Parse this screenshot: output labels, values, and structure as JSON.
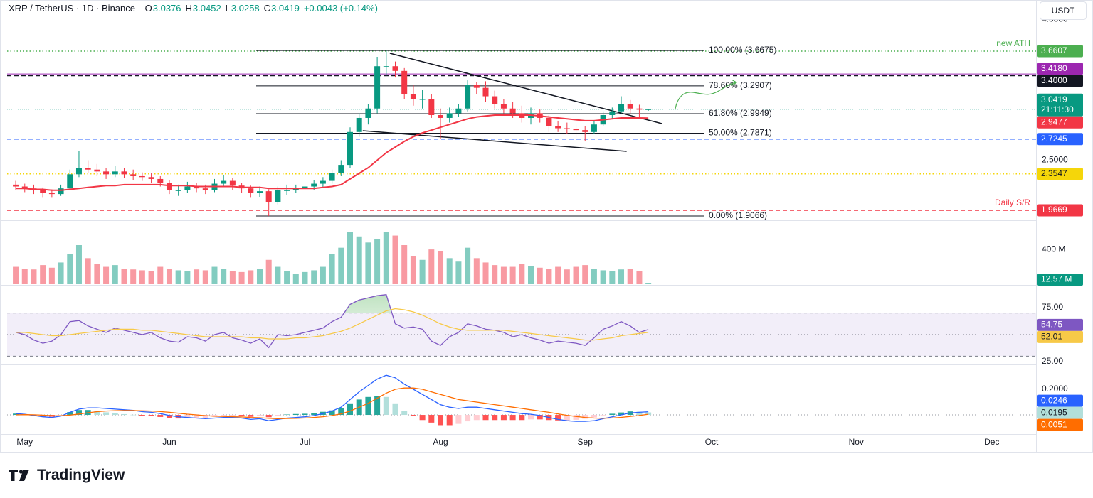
{
  "header": {
    "symbol": "XRP / TetherUS · 1D · Binance",
    "ohlc": [
      {
        "label": "O",
        "value": 3.0376
      },
      {
        "label": "H",
        "value": 3.0452
      },
      {
        "label": "L",
        "value": 3.0258
      },
      {
        "label": "C",
        "value": 3.0419
      }
    ],
    "change": "+0.0043 (+0.14%)",
    "currency": "USDT"
  },
  "chart_data": [
    {
      "type": "candlestick",
      "xlim": [
        -0.95,
        112.9
      ],
      "xticks": [
        {
          "value": 1,
          "label": "May"
        },
        {
          "value": 17,
          "label": "Jun"
        },
        {
          "value": 32,
          "label": "Jul"
        },
        {
          "value": 47,
          "label": "Aug"
        },
        {
          "value": 63,
          "label": "Sep"
        },
        {
          "value": 77,
          "label": "Oct"
        },
        {
          "value": 93,
          "label": "Nov"
        },
        {
          "value": 108,
          "label": "Dec"
        }
      ],
      "ylim": [
        1.861,
        4.167
      ],
      "yticks": [
        {
          "value": 2.5,
          "label": "2.5000"
        },
        {
          "value": 4,
          "label": "4.0000"
        }
      ],
      "up_color": "#089981",
      "down_color": "#f23645",
      "open": [
        2.24,
        2.22,
        2.2,
        2.18,
        2.15,
        2.14,
        2.2,
        2.35,
        2.42,
        2.4,
        2.38,
        2.35,
        2.38,
        2.35,
        2.33,
        2.32,
        2.3,
        2.26,
        2.18,
        2.18,
        2.22,
        2.2,
        2.18,
        2.25,
        2.28,
        2.23,
        2.2,
        2.15,
        2.17,
        2.05,
        2.18,
        2.18,
        2.2,
        2.22,
        2.25,
        2.28,
        2.36,
        2.45,
        2.8,
        2.95,
        3.05,
        3.5,
        3.5,
        3.45,
        3.2,
        3.15,
        3.15,
        2.98,
        2.95,
        3.0,
        3.05,
        3.3,
        3.27,
        3.18,
        3.1,
        3.05,
        3.0,
        2.95,
        3.0,
        2.95,
        2.86,
        2.84,
        2.83,
        2.82,
        2.8,
        2.88,
        2.98,
        3.02,
        3.1,
        3.05,
        3.0376
      ],
      "high": [
        2.28,
        2.25,
        2.24,
        2.21,
        2.19,
        2.24,
        2.4,
        2.6,
        2.5,
        2.46,
        2.42,
        2.44,
        2.42,
        2.4,
        2.37,
        2.36,
        2.33,
        2.29,
        2.24,
        2.27,
        2.26,
        2.24,
        2.3,
        2.34,
        2.31,
        2.26,
        2.23,
        2.22,
        2.19,
        2.22,
        2.24,
        2.24,
        2.26,
        2.29,
        2.32,
        2.4,
        2.5,
        2.85,
        3.0,
        3.1,
        3.6,
        3.6675,
        3.55,
        3.48,
        3.3,
        3.25,
        3.2,
        3.05,
        3.06,
        3.1,
        3.35,
        3.33,
        3.34,
        3.24,
        3.15,
        3.12,
        3.08,
        3.06,
        3.04,
        2.98,
        2.92,
        2.9,
        2.88,
        2.86,
        2.92,
        3.02,
        3.06,
        3.18,
        3.14,
        3.09,
        3.0452
      ],
      "low": [
        2.18,
        2.16,
        2.14,
        2.1,
        2.1,
        2.12,
        2.18,
        2.32,
        2.36,
        2.33,
        2.3,
        2.32,
        2.31,
        2.29,
        2.28,
        2.26,
        2.22,
        2.14,
        2.12,
        2.15,
        2.16,
        2.14,
        2.16,
        2.22,
        2.18,
        2.15,
        2.1,
        2.11,
        1.9066,
        2.03,
        2.13,
        2.15,
        2.16,
        2.18,
        2.21,
        2.25,
        2.33,
        2.42,
        2.75,
        2.88,
        3.0,
        3.4,
        3.38,
        3.15,
        3.08,
        3.05,
        2.95,
        2.73,
        2.9,
        2.96,
        3.02,
        3.2,
        3.12,
        3.05,
        3.0,
        2.95,
        2.9,
        2.88,
        2.9,
        2.8,
        2.8,
        2.78,
        2.74,
        2.7,
        2.78,
        2.86,
        2.94,
        3.0,
        3.0,
        2.95,
        3.0258
      ],
      "close": [
        2.22,
        2.2,
        2.18,
        2.15,
        2.14,
        2.2,
        2.35,
        2.42,
        2.4,
        2.38,
        2.35,
        2.38,
        2.35,
        2.33,
        2.32,
        2.3,
        2.26,
        2.18,
        2.18,
        2.22,
        2.2,
        2.18,
        2.25,
        2.28,
        2.23,
        2.2,
        2.15,
        2.17,
        2.05,
        2.18,
        2.18,
        2.2,
        2.22,
        2.25,
        2.28,
        2.36,
        2.45,
        2.8,
        2.95,
        3.05,
        3.5,
        3.5,
        3.45,
        3.2,
        3.15,
        3.15,
        2.98,
        2.95,
        3.0,
        3.05,
        3.3,
        3.27,
        3.18,
        3.1,
        3.05,
        3.0,
        2.95,
        3.0,
        2.95,
        2.86,
        2.84,
        2.83,
        2.82,
        2.8,
        2.88,
        2.98,
        3.02,
        3.1,
        3.05,
        3.0376,
        3.0419
      ],
      "countdown": "21:11:30",
      "ema": {
        "color": "#f23645",
        "values": [
          2.2,
          2.2,
          2.19,
          2.19,
          2.18,
          2.18,
          2.19,
          2.2,
          2.21,
          2.22,
          2.23,
          2.23,
          2.24,
          2.24,
          2.24,
          2.24,
          2.24,
          2.23,
          2.23,
          2.23,
          2.22,
          2.22,
          2.22,
          2.22,
          2.22,
          2.21,
          2.21,
          2.21,
          2.2,
          2.2,
          2.2,
          2.2,
          2.2,
          2.2,
          2.21,
          2.22,
          2.24,
          2.3,
          2.36,
          2.42,
          2.5,
          2.58,
          2.64,
          2.7,
          2.75,
          2.79,
          2.82,
          2.85,
          2.88,
          2.91,
          2.94,
          2.96,
          2.97,
          2.98,
          2.98,
          2.98,
          2.98,
          2.98,
          2.97,
          2.96,
          2.95,
          2.94,
          2.93,
          2.92,
          2.92,
          2.93,
          2.94,
          2.95,
          2.95,
          2.95,
          2.9477
        ]
      },
      "levels": [
        {
          "value": 3.6607,
          "tag": "3.6607",
          "name": "new ATH",
          "color": "#4caf50",
          "style": "dotted"
        },
        {
          "value": 3.418,
          "tag": "3.4180",
          "color": "#9c27b0",
          "style": "solid"
        },
        {
          "value": 3.4,
          "tag": "3.4000",
          "color": "#131722",
          "style": "dashed"
        },
        {
          "value": 2.7245,
          "tag": "2.7245",
          "color": "#2962ff",
          "style": "dashed"
        },
        {
          "value": 2.3547,
          "tag": "2.3547",
          "color": "#f5d60a",
          "text_color": "#131722",
          "style": "dotted"
        },
        {
          "value": 1.9669,
          "tag": "1.9669",
          "name": "Daily S/R",
          "color": "#f23645",
          "style": "dashed"
        }
      ],
      "fibonacci": [
        {
          "value": 3.6675,
          "label": "100.00% (3.6675)"
        },
        {
          "value": 3.2907,
          "label": "78.60% (3.2907)"
        },
        {
          "value": 2.9949,
          "label": "61.80% (2.9949)"
        },
        {
          "value": 2.7871,
          "label": "50.00% (2.7871)"
        },
        {
          "value": 1.9066,
          "label": "0.00% (1.9066)"
        }
      ],
      "trendlines": [
        {
          "x": [
            41.4,
            71.5
          ],
          "y": [
            3.638,
            2.889
          ]
        },
        {
          "x": [
            38.4,
            67.6
          ],
          "y": [
            2.814,
            2.594
          ]
        }
      ]
    },
    {
      "type": "volume",
      "ylim": [
        0,
        720
      ],
      "yticks": [
        {
          "value": 400,
          "label": "400 M"
        }
      ],
      "values": [
        200,
        180,
        170,
        220,
        190,
        250,
        350,
        450,
        300,
        230,
        200,
        220,
        180,
        170,
        160,
        150,
        200,
        180,
        160,
        150,
        170,
        160,
        200,
        180,
        150,
        140,
        160,
        180,
        280,
        200,
        150,
        120,
        140,
        160,
        200,
        350,
        420,
        600,
        550,
        480,
        520,
        600,
        560,
        450,
        320,
        280,
        400,
        380,
        300,
        260,
        420,
        300,
        250,
        220,
        200,
        200,
        230,
        210,
        190,
        180,
        200,
        170,
        200,
        220,
        180,
        160,
        150,
        170,
        180,
        150,
        12.57
      ],
      "last_value_label": "12.57 M"
    },
    {
      "type": "rsi",
      "ylim": [
        23,
        93.4
      ],
      "yticks": [
        {
          "value": 75,
          "label": "75.00"
        },
        {
          "value": 25,
          "label": "25.00"
        }
      ],
      "bands": {
        "upper": 70,
        "middle": 50,
        "lower": 30
      },
      "series": [
        {
          "color": "#7e57c2",
          "values": [
            52,
            50,
            45,
            42,
            44,
            50,
            62,
            63,
            58,
            55,
            52,
            56,
            54,
            52,
            50,
            52,
            47,
            44,
            43,
            48,
            47,
            44,
            50,
            52,
            47,
            45,
            42,
            46,
            38,
            50,
            49,
            50,
            52,
            54,
            56,
            62,
            66,
            78,
            82,
            84,
            86,
            87,
            60,
            56,
            57,
            55,
            44,
            40,
            48,
            52,
            60,
            58,
            55,
            54,
            52,
            48,
            50,
            47,
            45,
            42,
            44,
            43,
            42,
            40,
            47,
            55,
            58,
            62,
            58,
            52,
            54.75
          ]
        },
        {
          "color": "#f7c948",
          "values": [
            52,
            52,
            51,
            50,
            49,
            49,
            50,
            51,
            52,
            53,
            54,
            55,
            55,
            55,
            54,
            54,
            53,
            52,
            51,
            50,
            49,
            48,
            48,
            48,
            48,
            48,
            47,
            47,
            46,
            46,
            46,
            47,
            47,
            48,
            49,
            51,
            53,
            56,
            60,
            64,
            68,
            72,
            74,
            73,
            71,
            68,
            64,
            60,
            57,
            55,
            54,
            54,
            54,
            54,
            54,
            53,
            52,
            51,
            50,
            49,
            48,
            47,
            46,
            45,
            45,
            46,
            47,
            49,
            50,
            51,
            52.01
          ]
        }
      ]
    },
    {
      "type": "macd",
      "ylim": [
        -0.144,
        0.383
      ],
      "yticks": [
        {
          "value": 0.2,
          "label": "0.2000"
        }
      ],
      "baseline": 0,
      "series": [
        {
          "color": "#2962ff",
          "values": [
            0.01,
            0.005,
            -0.005,
            -0.015,
            -0.02,
            -0.01,
            0.02,
            0.045,
            0.055,
            0.055,
            0.05,
            0.045,
            0.04,
            0.035,
            0.025,
            0.02,
            0.01,
            -0.005,
            -0.015,
            -0.02,
            -0.025,
            -0.03,
            -0.025,
            -0.02,
            -0.02,
            -0.025,
            -0.035,
            -0.03,
            -0.045,
            -0.035,
            -0.025,
            -0.02,
            -0.015,
            -0.005,
            0.01,
            0.03,
            0.06,
            0.12,
            0.18,
            0.23,
            0.28,
            0.31,
            0.29,
            0.24,
            0.2,
            0.16,
            0.12,
            0.08,
            0.06,
            0.05,
            0.06,
            0.06,
            0.05,
            0.04,
            0.03,
            0.02,
            0.01,
            0.005,
            -0.005,
            -0.02,
            -0.035,
            -0.045,
            -0.05,
            -0.05,
            -0.045,
            -0.03,
            -0.015,
            0,
            0.015,
            0.02,
            0.0246
          ]
        },
        {
          "color": "#ff6d00",
          "values": [
            0,
            0.002,
            0.001,
            -0.002,
            -0.006,
            -0.007,
            -0.002,
            0.007,
            0.017,
            0.025,
            0.03,
            0.033,
            0.034,
            0.034,
            0.032,
            0.03,
            0.026,
            0.02,
            0.013,
            0.006,
            0,
            -0.006,
            -0.01,
            -0.012,
            -0.014,
            -0.016,
            -0.02,
            -0.022,
            -0.027,
            -0.029,
            -0.028,
            -0.027,
            -0.024,
            -0.02,
            -0.014,
            -0.005,
            0.008,
            0.03,
            0.06,
            0.09,
            0.13,
            0.17,
            0.2,
            0.21,
            0.21,
            0.2,
            0.18,
            0.16,
            0.14,
            0.12,
            0.11,
            0.1,
            0.09,
            0.08,
            0.07,
            0.06,
            0.05,
            0.04,
            0.03,
            0.02,
            0.008,
            -0.003,
            -0.012,
            -0.02,
            -0.025,
            -0.026,
            -0.024,
            -0.019,
            -0.012,
            -0.005,
            0.0051
          ]
        }
      ],
      "histogram": [
        0.01,
        0.003,
        -0.006,
        -0.013,
        -0.014,
        -0.003,
        0.022,
        0.038,
        0.038,
        0.03,
        0.02,
        0.012,
        0.006,
        0.001,
        -0.007,
        -0.01,
        -0.016,
        -0.025,
        -0.028,
        -0.026,
        -0.025,
        -0.024,
        -0.015,
        -0.008,
        -0.006,
        -0.009,
        -0.015,
        -0.008,
        -0.018,
        -0.006,
        0.003,
        0.007,
        0.009,
        0.015,
        0.024,
        0.035,
        0.052,
        0.09,
        0.12,
        0.14,
        0.15,
        0.14,
        0.09,
        0.03,
        -0.01,
        -0.04,
        -0.06,
        -0.08,
        -0.08,
        -0.07,
        -0.05,
        -0.04,
        -0.04,
        -0.04,
        -0.04,
        -0.04,
        -0.04,
        -0.035,
        -0.035,
        -0.04,
        -0.043,
        -0.042,
        -0.038,
        -0.03,
        -0.02,
        -0.004,
        0.009,
        0.019,
        0.027,
        0.025,
        0.0195
      ]
    }
  ],
  "brand": "TradingView"
}
